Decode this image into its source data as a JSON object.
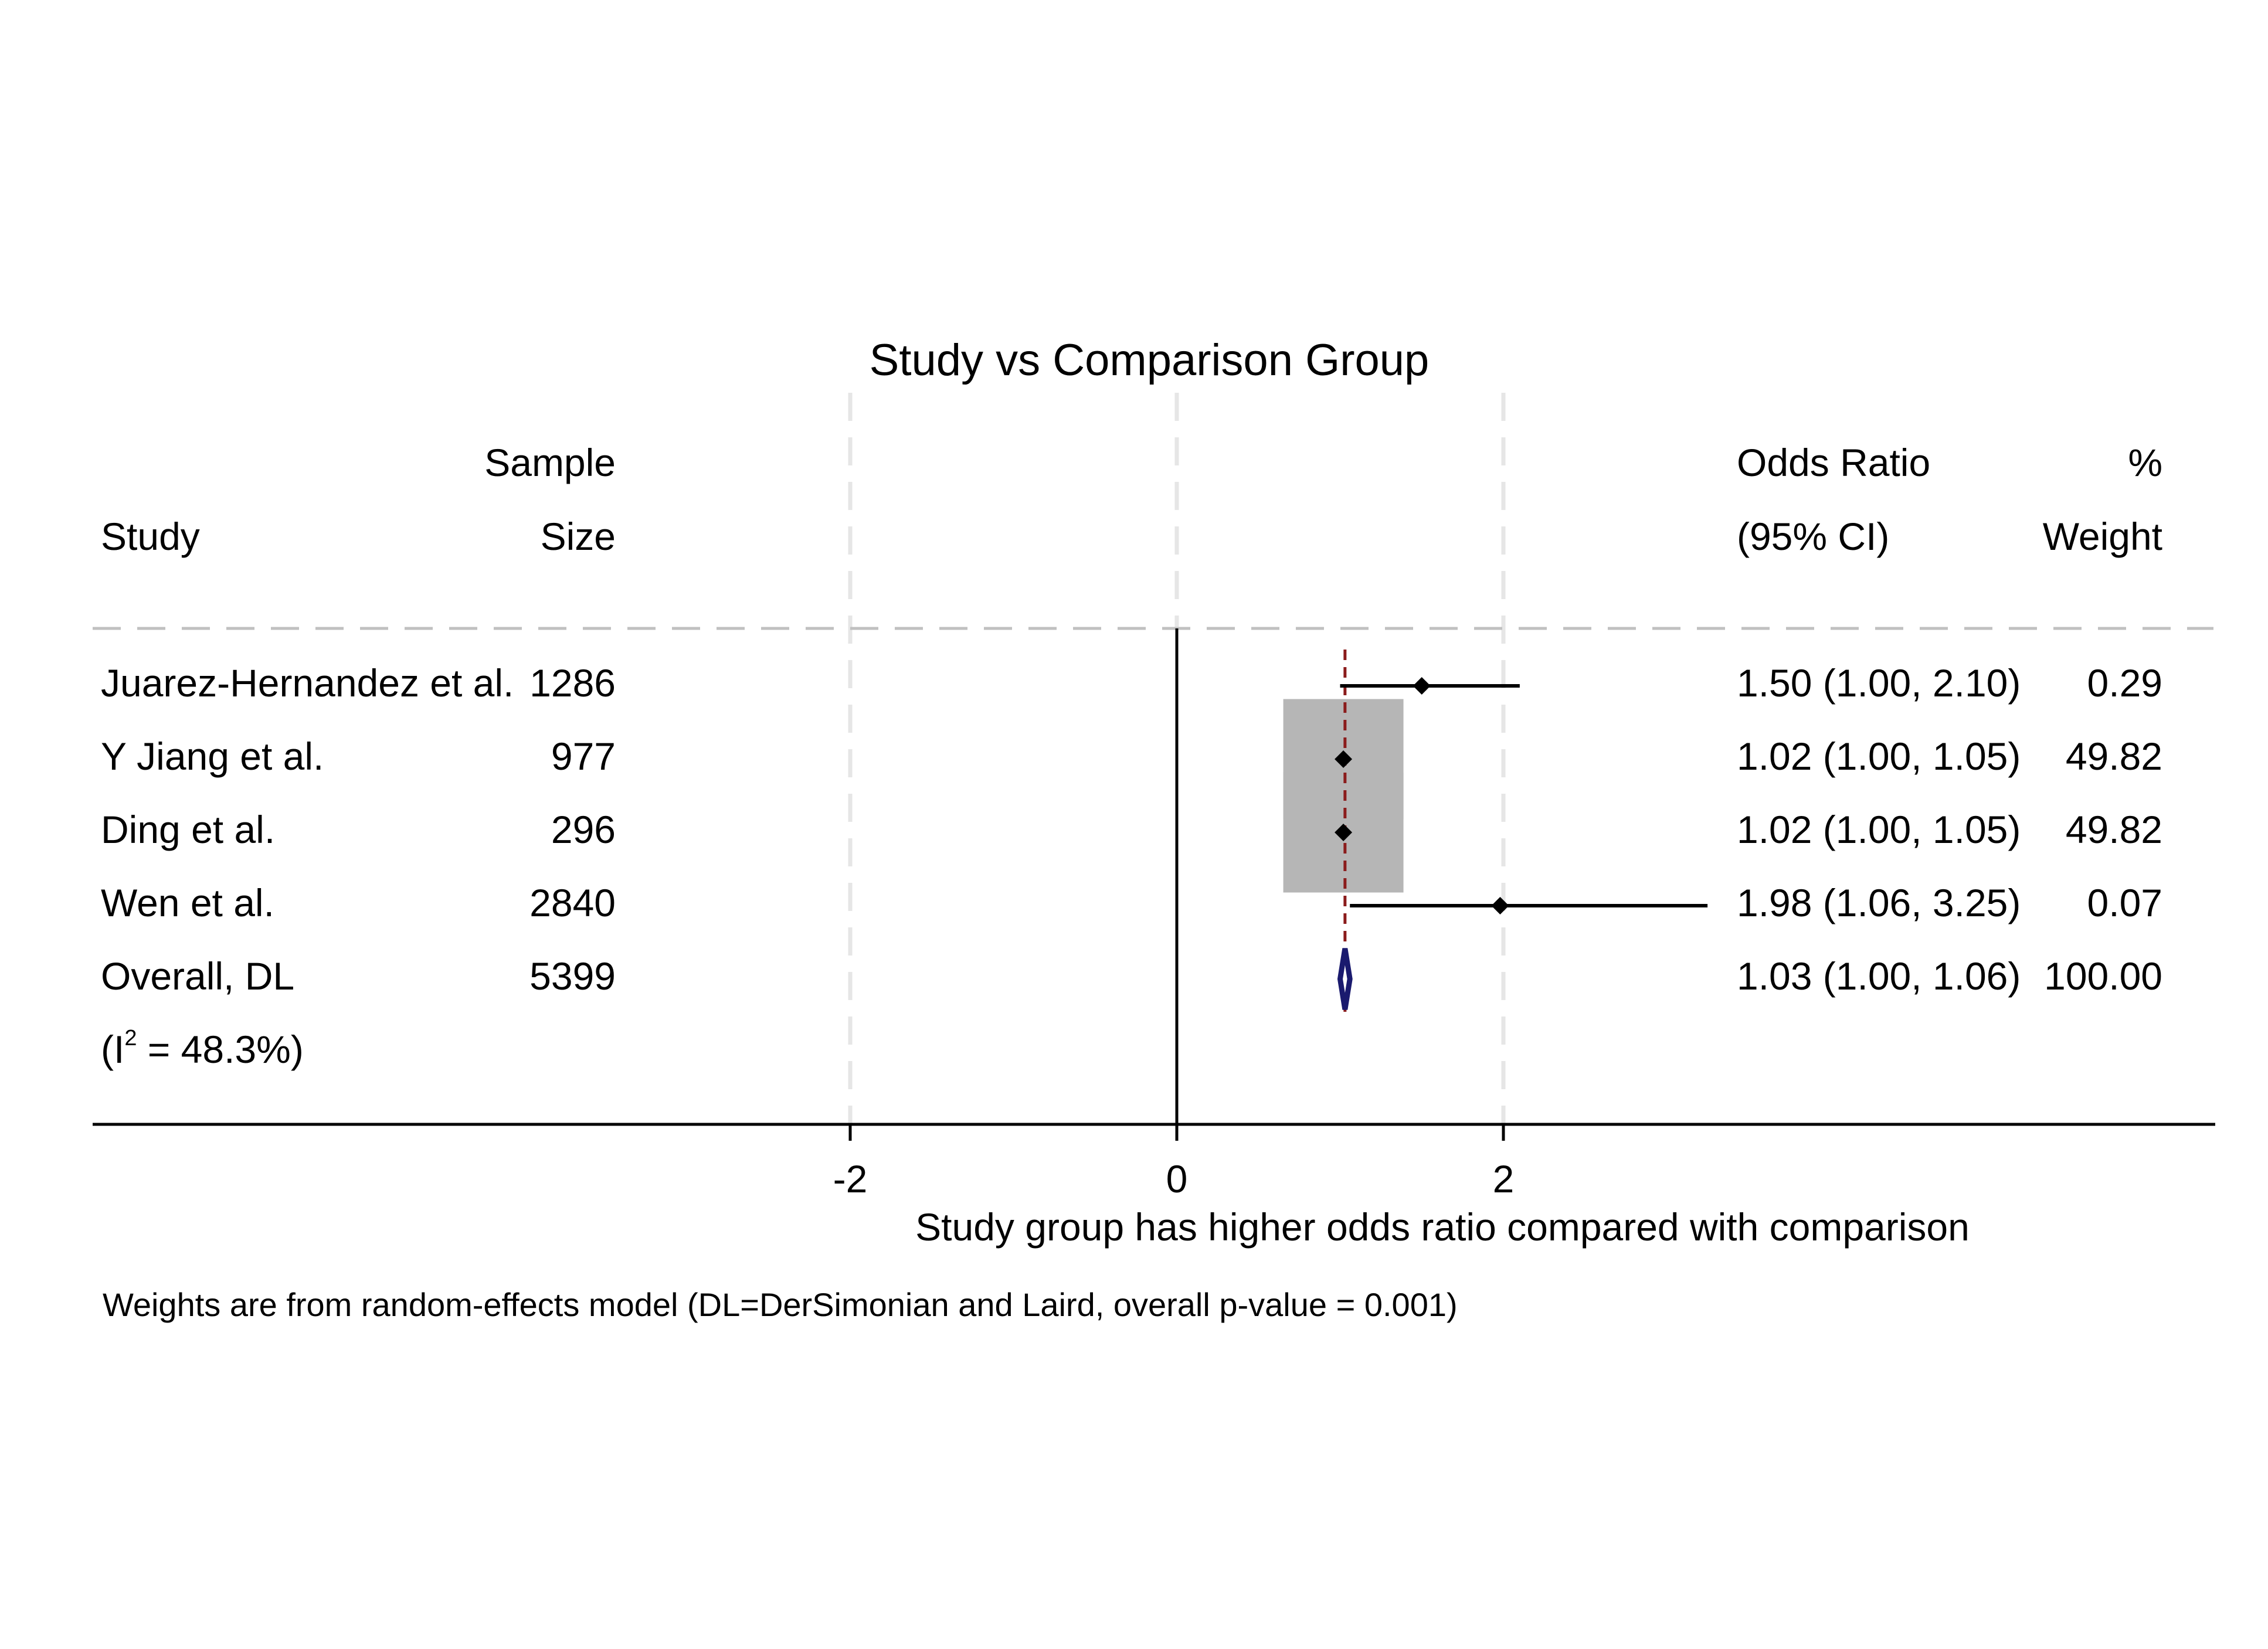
{
  "chart_data": {
    "type": "forest",
    "title": "Study vs Comparison Group",
    "columns": {
      "study": "Study",
      "sample_size": [
        "Sample",
        "Size"
      ],
      "effect": [
        "Odds Ratio",
        "(95% CI)"
      ],
      "weight": [
        "%",
        "Weight"
      ]
    },
    "studies": [
      {
        "name": "Juarez-Hernandez et al.",
        "sample_size": "1286",
        "or": 1.5,
        "lower": 1.0,
        "upper": 2.1,
        "ci_text": "1.50 (1.00, 2.10)",
        "weight": 0.29,
        "weight_text": "0.29"
      },
      {
        "name": "Y Jiang et al.",
        "sample_size": "977",
        "or": 1.02,
        "lower": 1.0,
        "upper": 1.05,
        "ci_text": "1.02 (1.00, 1.05)",
        "weight": 49.82,
        "weight_text": "49.82"
      },
      {
        "name": "Ding et al.",
        "sample_size": "296",
        "or": 1.02,
        "lower": 1.0,
        "upper": 1.05,
        "ci_text": "1.02 (1.00, 1.05)",
        "weight": 49.82,
        "weight_text": "49.82"
      },
      {
        "name": "Wen et al.",
        "sample_size": "2840",
        "or": 1.98,
        "lower": 1.06,
        "upper": 3.25,
        "ci_text": "1.98 (1.06, 3.25)",
        "weight": 0.07,
        "weight_text": "0.07"
      }
    ],
    "overall": {
      "name": "Overall, DL",
      "sample_size": "5399",
      "or": 1.03,
      "lower": 1.0,
      "upper": 1.06,
      "ci_text": "1.03 (1.00, 1.06)",
      "weight_text": "100.00"
    },
    "heterogeneity": {
      "prefix": "(I",
      "sup": "2",
      "suffix": " = 48.3%)"
    },
    "x_ticks": [
      -2,
      0,
      2
    ],
    "x_tick_labels": [
      "-2",
      "0",
      "2"
    ],
    "xlabel": "Study group has higher odds ratio compared with comparison",
    "footnote": "Weights are from random-effects model (DL=DerSimonian and Laird, overall p-value = 0.001)",
    "reference_line": 0,
    "grid": true,
    "colors": {
      "text": "#000000",
      "grid": "#e6e6e6",
      "header_rule": "#c0c0c0",
      "weight_box": "#b6b6b6",
      "overall_line": "#8b1c1c",
      "overall_diamond": "#1a1a6e",
      "point": "#000000"
    }
  }
}
